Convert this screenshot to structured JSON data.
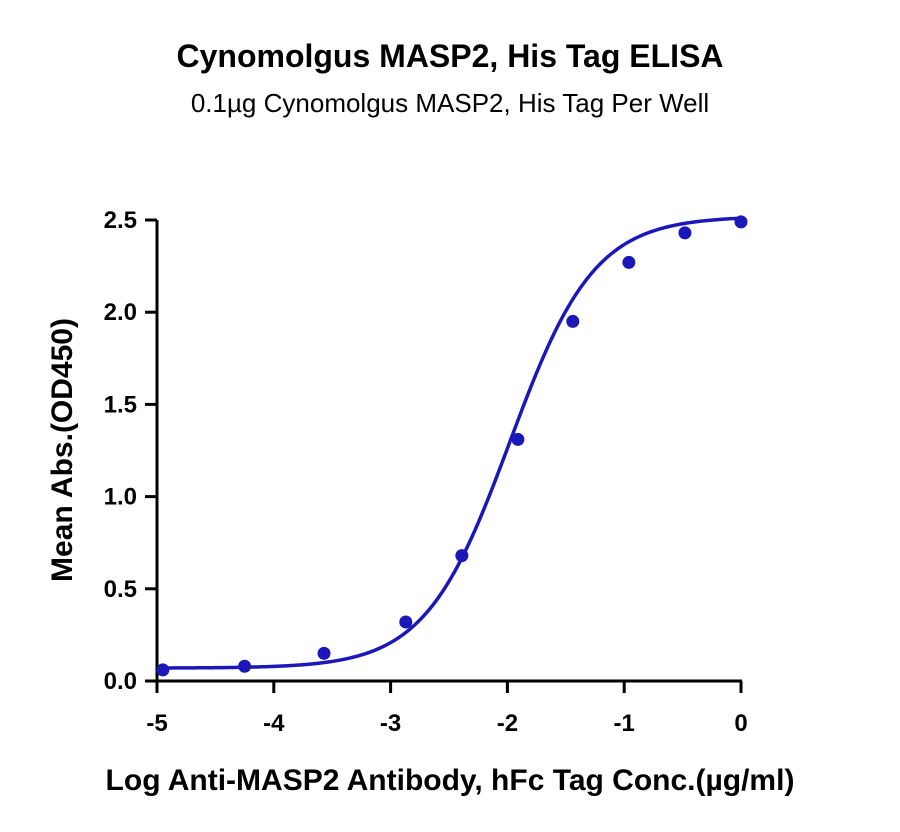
{
  "chart_data": {
    "type": "scatter",
    "title": "Cynomolgus MASP2, His Tag ELISA",
    "subtitle": "0.1µg Cynomolgus MASP2, His Tag Per Well",
    "xlabel": "Log Anti-MASP2 Antibody, hFc Tag Conc.(µg/ml)",
    "ylabel": "Mean Abs.(OD450)",
    "xlim": [
      -5,
      0
    ],
    "ylim": [
      0,
      2.5
    ],
    "x_ticks": [
      "-5",
      "-4",
      "-3",
      "-2",
      "-1",
      "0"
    ],
    "y_ticks": [
      "0.0",
      "0.5",
      "1.0",
      "1.5",
      "2.0",
      "2.5"
    ],
    "grid": false,
    "series": [
      {
        "points": [
          {
            "x": -4.95,
            "y": 0.06
          },
          {
            "x": -4.25,
            "y": 0.08
          },
          {
            "x": -3.57,
            "y": 0.15
          },
          {
            "x": -2.87,
            "y": 0.32
          },
          {
            "x": -2.39,
            "y": 0.68
          },
          {
            "x": -1.91,
            "y": 1.31
          },
          {
            "x": -1.44,
            "y": 1.95
          },
          {
            "x": -0.96,
            "y": 2.27
          },
          {
            "x": -0.48,
            "y": 2.43
          },
          {
            "x": 0.0,
            "y": 2.49
          }
        ],
        "fit": {
          "bottom": 0.07,
          "top": 2.52,
          "logEC50": -1.98,
          "hill": 1.2
        }
      }
    ],
    "color": "#1c17b8"
  }
}
